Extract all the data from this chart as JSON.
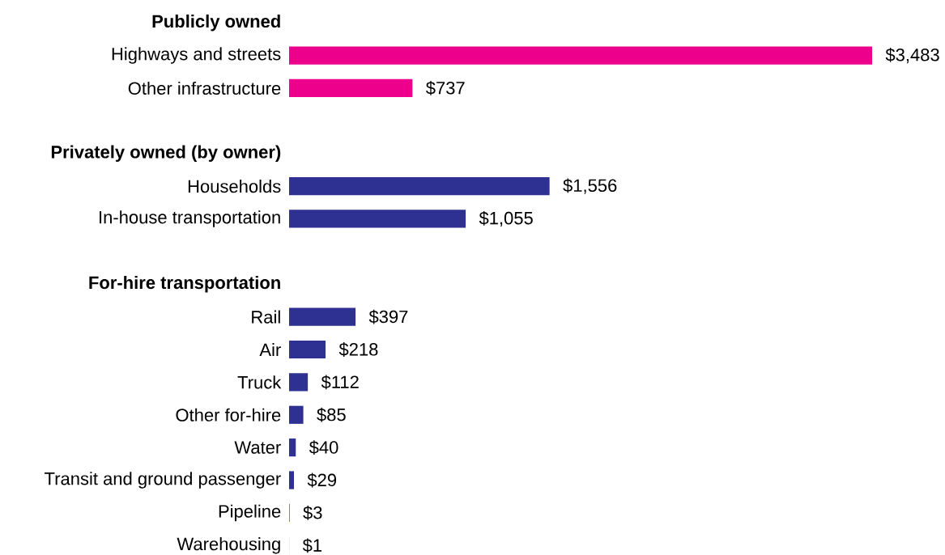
{
  "chart_data": {
    "type": "bar",
    "orientation": "horizontal",
    "categories": [
      "Publicly owned",
      "Highways and streets",
      "Other infrastructure",
      null,
      "Privately owned (by owner)",
      "Households",
      "In-house transportation",
      null,
      "For-hire transportation",
      "Rail",
      "Air",
      "Truck",
      "Other for-hire",
      "Water",
      "Transit and ground passenger",
      "Pipeline",
      "Warehousing"
    ],
    "values": [
      null,
      3483,
      737,
      null,
      null,
      1556,
      1055,
      null,
      null,
      397,
      218,
      112,
      85,
      40,
      29,
      3,
      1
    ],
    "colors": [
      null,
      "#ec008c",
      "#ec008c",
      null,
      null,
      "#2e3192",
      "#2e3192",
      null,
      null,
      "#2e3192",
      "#2e3192",
      "#2e3192",
      "#2e3192",
      "#2e3192",
      "#2e3192",
      "#2e3192",
      "#2e3192"
    ],
    "value_labels": [
      null,
      "$3,483",
      "$737",
      null,
      null,
      "$1,556",
      "$1,055",
      null,
      null,
      "$397",
      "$218",
      "$112",
      "$85",
      "$40",
      "$29",
      "$3",
      "$1"
    ]
  }
}
